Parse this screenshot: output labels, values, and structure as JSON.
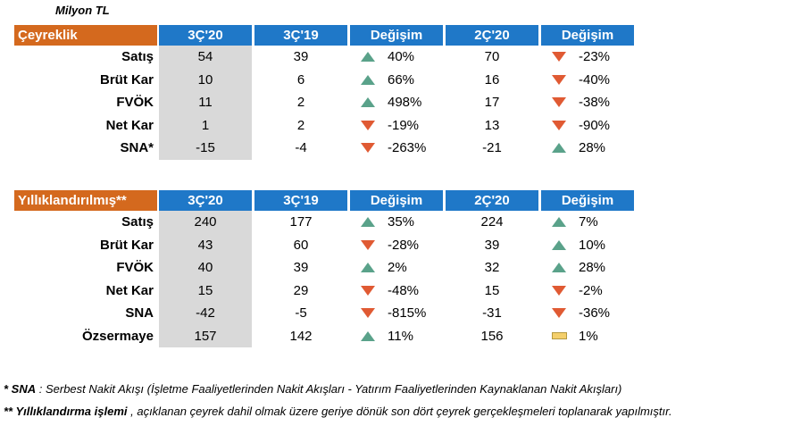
{
  "unit_label": "Milyon TL",
  "quarterly": {
    "headers": [
      "Çeyreklik",
      "3Ç'20",
      "3Ç'19",
      "Değişim",
      "2Ç'20",
      "Değişim"
    ],
    "rows": [
      {
        "label": "Satış",
        "cur": "54",
        "prev": "39",
        "chg1": "40%",
        "dir1": "up",
        "q2": "70",
        "chg2": "-23%",
        "dir2": "down"
      },
      {
        "label": "Brüt Kar",
        "cur": "10",
        "prev": "6",
        "chg1": "66%",
        "dir1": "up",
        "q2": "16",
        "chg2": "-40%",
        "dir2": "down"
      },
      {
        "label": "FVÖK",
        "cur": "11",
        "prev": "2",
        "chg1": "498%",
        "dir1": "up",
        "q2": "17",
        "chg2": "-38%",
        "dir2": "down"
      },
      {
        "label": "Net Kar",
        "cur": "1",
        "prev": "2",
        "chg1": "-19%",
        "dir1": "down",
        "q2": "13",
        "chg2": "-90%",
        "dir2": "down"
      },
      {
        "label": "SNA*",
        "cur": "-15",
        "prev": "-4",
        "chg1": "-263%",
        "dir1": "down",
        "q2": "-21",
        "chg2": "28%",
        "dir2": "up"
      }
    ]
  },
  "annual": {
    "headers": [
      "Yıllıklandırılmış**",
      "3Ç'20",
      "3Ç'19",
      "Değişim",
      "2Ç'20",
      "Değişim"
    ],
    "rows": [
      {
        "label": "Satış",
        "cur": "240",
        "prev": "177",
        "chg1": "35%",
        "dir1": "up",
        "q2": "224",
        "chg2": "7%",
        "dir2": "up"
      },
      {
        "label": "Brüt Kar",
        "cur": "43",
        "prev": "60",
        "chg1": "-28%",
        "dir1": "down",
        "q2": "39",
        "chg2": "10%",
        "dir2": "up"
      },
      {
        "label": "FVÖK",
        "cur": "40",
        "prev": "39",
        "chg1": "2%",
        "dir1": "up",
        "q2": "32",
        "chg2": "28%",
        "dir2": "up"
      },
      {
        "label": "Net Kar",
        "cur": "15",
        "prev": "29",
        "chg1": "-48%",
        "dir1": "down",
        "q2": "15",
        "chg2": "-2%",
        "dir2": "down"
      },
      {
        "label": "SNA",
        "cur": "-42",
        "prev": "-5",
        "chg1": "-815%",
        "dir1": "down",
        "q2": "-31",
        "chg2": "-36%",
        "dir2": "down"
      },
      {
        "label": "Özsermaye",
        "cur": "157",
        "prev": "142",
        "chg1": "11%",
        "dir1": "up",
        "q2": "156",
        "chg2": "1%",
        "dir2": "flat"
      }
    ]
  },
  "footnotes": [
    {
      "key": "* SNA",
      "text": " : Serbest Nakit Akışı (İşletme Faaliyetlerinden Nakit Akışları - Yatırım Faaliyetlerinden Kaynaklanan Nakit Akışları)"
    },
    {
      "key": "** Yıllıklandırma işlemi",
      "text": " , açıklanan çeyrek dahil olmak üzere geriye dönük son dört çeyrek gerçekleşmeleri toplanarak yapılmıştır."
    }
  ],
  "colors": {
    "header_label_bg": "#d4691e",
    "header_bg": "#1f78c8",
    "current_col_bg": "#d9d9d9",
    "up_arrow": "#5aa28a",
    "down_arrow": "#e05a33",
    "flat_marker": "#f4cf6b"
  },
  "icons": {
    "up": "triangle-up-icon",
    "down": "triangle-down-icon",
    "flat": "flat-bar-icon"
  }
}
